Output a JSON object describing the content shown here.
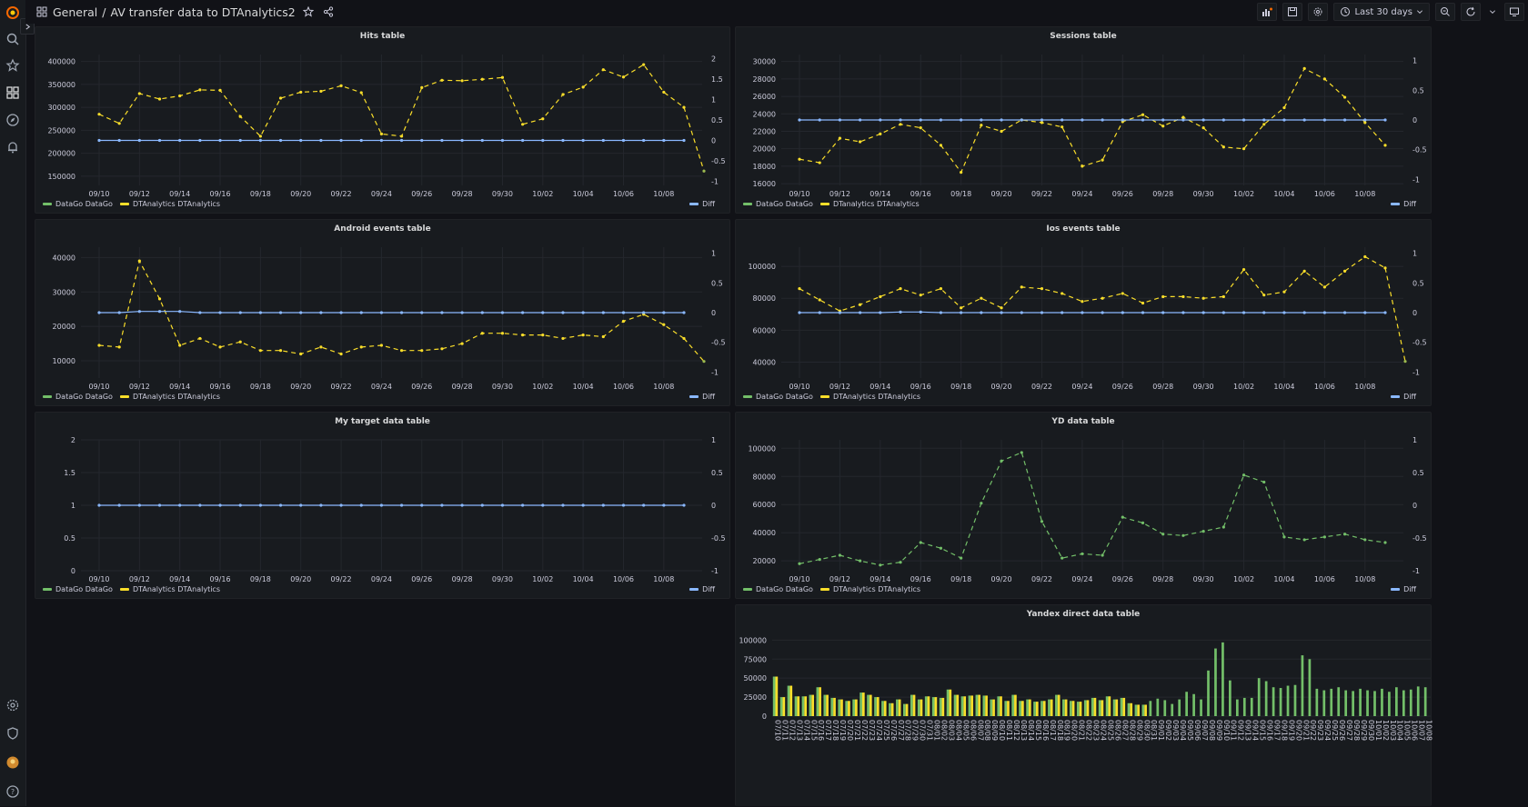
{
  "breadcrumb": {
    "folder": "General",
    "separator": "/",
    "title": "AV transfer data to DTAnalytics2"
  },
  "toolbar": {
    "time_range": "Last 30 days"
  },
  "colors": {
    "series_green": "#73bf69",
    "series_yellow": "#fade2a",
    "series_diff": "#8ab8ff",
    "bar_fill": "#9bb94f"
  },
  "panels": {
    "hits": {
      "title": "Hits table",
      "legend": [
        "DataGo DataGo",
        "DTAnalytics DTAnalytics"
      ],
      "legend_right": "Diff"
    },
    "sessions": {
      "title": "Sessions table",
      "legend": [
        "DataGo DataGo",
        "DTanalytics DTAnalytics"
      ],
      "legend_right": "Diff"
    },
    "android": {
      "title": "Android events table",
      "legend": [
        "DataGo DataGo",
        "DTAnalytics DTAnalytics"
      ],
      "legend_right": "Diff"
    },
    "ios": {
      "title": "Ios events table",
      "legend": [
        "DataGo DataGo",
        "DTAnalytics DTAnalytics"
      ],
      "legend_right": "Diff"
    },
    "target": {
      "title": "My target data table",
      "legend": [
        "DataGo DataGo",
        "DTAnalytics DTAnalytics"
      ],
      "legend_right": "Diff"
    },
    "yd": {
      "title": "YD data table",
      "legend": [
        "DataGo DataGo",
        "DTAnalytics DTAnalytics"
      ],
      "legend_right": "Diff"
    },
    "yandex": {
      "title": "Yandex direct data table"
    }
  },
  "chart_data": [
    {
      "id": "hits",
      "type": "line",
      "x_ticks": [
        "09/10",
        "09/12",
        "09/14",
        "09/16",
        "09/18",
        "09/20",
        "09/22",
        "09/24",
        "09/26",
        "09/28",
        "09/30",
        "10/02",
        "10/04",
        "10/06",
        "10/08"
      ],
      "y_ticks": [
        "400000",
        "350000",
        "300000",
        "250000",
        "200000",
        "150000"
      ],
      "ylim": [
        130000,
        415000
      ],
      "y2_ticks": [
        "2",
        "1.5",
        "1",
        "0.5",
        "0",
        "-0.5",
        "-1"
      ],
      "y2lim": [
        -1.1,
        2.1
      ],
      "series": [
        {
          "name": "DTAnalytics DTAnalytics",
          "axis": "left",
          "color": "#fade2a",
          "dashed": true,
          "values": [
            285000,
            265000,
            330000,
            318000,
            325000,
            338000,
            337000,
            280000,
            237000,
            320000,
            333000,
            335000,
            347000,
            332000,
            242000,
            237000,
            343000,
            359000,
            358000,
            361000,
            365000,
            263000,
            275000,
            328000,
            344000,
            382000,
            366000,
            393000,
            333000,
            300000
          ]
        },
        {
          "name": "Diff",
          "axis": "right",
          "color": "#8ab8ff",
          "values": [
            0,
            0,
            0,
            0,
            0,
            0,
            0,
            0,
            0,
            0,
            0,
            0,
            0,
            0,
            0,
            0,
            0,
            0,
            0,
            0,
            0,
            0,
            0,
            0,
            0,
            0,
            0,
            0,
            0,
            0
          ],
          "end_point": -0.75
        }
      ]
    },
    {
      "id": "sessions",
      "type": "line",
      "x_ticks": [
        "09/10",
        "09/12",
        "09/14",
        "09/16",
        "09/18",
        "09/20",
        "09/22",
        "09/24",
        "09/26",
        "09/28",
        "09/30",
        "10/02",
        "10/04",
        "10/06",
        "10/08"
      ],
      "y_ticks": [
        "30000",
        "28000",
        "26000",
        "24000",
        "22000",
        "20000",
        "18000",
        "16000"
      ],
      "ylim": [
        15800,
        30800
      ],
      "y2_ticks": [
        "1",
        "0.5",
        "0",
        "-0.5",
        "-1"
      ],
      "y2lim": [
        -1.1,
        1.1
      ],
      "series": [
        {
          "name": "DTanalytics DTAnalytics",
          "axis": "left",
          "color": "#fade2a",
          "dashed": true,
          "values": [
            18800,
            18400,
            21200,
            20800,
            21700,
            22800,
            22400,
            20400,
            17300,
            22700,
            22000,
            23300,
            23000,
            22500,
            18000,
            18700,
            23100,
            23900,
            22600,
            23600,
            22400,
            20200,
            20000,
            22800,
            24700,
            29200,
            28000,
            25900,
            23000,
            20400
          ]
        },
        {
          "name": "Diff",
          "axis": "right",
          "color": "#8ab8ff",
          "values": [
            0,
            0,
            0,
            0,
            0,
            0,
            0,
            0,
            0,
            0,
            0,
            0,
            0,
            0,
            0,
            0,
            0,
            0,
            0,
            0,
            0,
            0,
            0,
            0,
            0,
            0,
            0,
            0,
            0,
            0
          ]
        }
      ]
    },
    {
      "id": "android",
      "type": "line",
      "x_ticks": [
        "09/10",
        "09/12",
        "09/14",
        "09/16",
        "09/18",
        "09/20",
        "09/22",
        "09/24",
        "09/26",
        "09/28",
        "09/30",
        "10/02",
        "10/04",
        "10/06",
        "10/08"
      ],
      "y_ticks": [
        "40000",
        "30000",
        "20000",
        "10000"
      ],
      "ylim": [
        5000,
        43000
      ],
      "y2_ticks": [
        "1",
        "0.5",
        "0",
        "-0.5",
        "-1"
      ],
      "y2lim": [
        -1.1,
        1.1
      ],
      "series": [
        {
          "name": "DTAnalytics DTAnalytics",
          "axis": "left",
          "color": "#fade2a",
          "dashed": true,
          "values": [
            14500,
            14000,
            39000,
            28000,
            14500,
            16500,
            14000,
            15500,
            13000,
            13000,
            12000,
            14000,
            12000,
            14000,
            14500,
            13000,
            13000,
            13500,
            15000,
            18000,
            18000,
            17500,
            17500,
            16500,
            17500,
            17000,
            21500,
            23500,
            20500,
            16500
          ]
        },
        {
          "name": "Diff",
          "axis": "right",
          "color": "#8ab8ff",
          "values": [
            0,
            0,
            0.02,
            0.02,
            0.02,
            0,
            0,
            0,
            0,
            0,
            0,
            0,
            0,
            0,
            0,
            0,
            0,
            0,
            0,
            0,
            0,
            0,
            0,
            0,
            0,
            0,
            0,
            0,
            0,
            0
          ],
          "end_point": -0.82
        }
      ]
    },
    {
      "id": "ios",
      "type": "line",
      "x_ticks": [
        "09/10",
        "09/12",
        "09/14",
        "09/16",
        "09/18",
        "09/20",
        "09/22",
        "09/24",
        "09/26",
        "09/28",
        "09/30",
        "10/02",
        "10/04",
        "10/06",
        "10/08"
      ],
      "y_ticks": [
        "100000",
        "80000",
        "60000",
        "40000"
      ],
      "ylim": [
        30000,
        112000
      ],
      "y2_ticks": [
        "1",
        "0.5",
        "0",
        "-0.5",
        "-1"
      ],
      "y2lim": [
        -1.1,
        1.1
      ],
      "series": [
        {
          "name": "DTAnalytics DTAnalytics",
          "axis": "left",
          "color": "#fade2a",
          "dashed": true,
          "values": [
            86000,
            79000,
            72000,
            76000,
            81000,
            86000,
            82000,
            86000,
            74000,
            80000,
            74000,
            87000,
            86000,
            83000,
            78000,
            80000,
            83000,
            77000,
            81000,
            81000,
            80000,
            81000,
            98000,
            82000,
            84000,
            97000,
            87000,
            97000,
            106000,
            99000
          ]
        },
        {
          "name": "Diff",
          "axis": "right",
          "color": "#8ab8ff",
          "values": [
            0,
            0,
            0,
            0,
            0,
            0.01,
            0.01,
            0,
            0,
            0,
            0,
            0,
            0,
            0,
            0,
            0,
            0,
            0,
            0,
            0,
            0,
            0,
            0,
            0,
            0,
            0,
            0,
            0,
            0,
            0
          ],
          "end_point": -0.82
        }
      ]
    },
    {
      "id": "target",
      "type": "line",
      "x_ticks": [
        "09/10",
        "09/12",
        "09/14",
        "09/16",
        "09/18",
        "09/20",
        "09/22",
        "09/24",
        "09/26",
        "09/28",
        "09/30",
        "10/02",
        "10/04",
        "10/06",
        "10/08"
      ],
      "y_ticks": [
        "2",
        "1.5",
        "1",
        "0.5",
        "0"
      ],
      "ylim": [
        0,
        2
      ],
      "y2_ticks": [
        "1",
        "0.5",
        "0",
        "-0.5",
        "-1"
      ],
      "y2lim": [
        -1,
        1
      ],
      "series": [
        {
          "name": "Diff",
          "axis": "right",
          "color": "#8ab8ff",
          "values": [
            0,
            0,
            0,
            0,
            0,
            0,
            0,
            0,
            0,
            0,
            0,
            0,
            0,
            0,
            0,
            0,
            0,
            0,
            0,
            0,
            0,
            0,
            0,
            0,
            0,
            0,
            0,
            0,
            0,
            0
          ]
        }
      ]
    },
    {
      "id": "yd",
      "type": "line",
      "x_ticks": [
        "09/10",
        "09/12",
        "09/14",
        "09/16",
        "09/18",
        "09/20",
        "09/22",
        "09/24",
        "09/26",
        "09/28",
        "09/30",
        "10/02",
        "10/04",
        "10/06",
        "10/08"
      ],
      "y_ticks": [
        "100000",
        "80000",
        "60000",
        "40000",
        "20000"
      ],
      "ylim": [
        13000,
        106000
      ],
      "y2_ticks": [
        "1",
        "0.5",
        "0",
        "-0.5",
        "-1"
      ],
      "y2lim": [
        -1,
        1
      ],
      "series": [
        {
          "name": "DataGo DataGo",
          "axis": "left",
          "color": "#73bf69",
          "dashed": true,
          "values": [
            18000,
            21000,
            24000,
            20000,
            17000,
            19000,
            33000,
            29000,
            22000,
            61000,
            91000,
            97000,
            48000,
            22000,
            25000,
            24000,
            51000,
            47000,
            39000,
            38000,
            41000,
            44000,
            81000,
            76000,
            37000,
            35000,
            37000,
            39000,
            35000,
            33000
          ]
        }
      ]
    },
    {
      "id": "yandex",
      "type": "bar",
      "y_ticks": [
        "100000",
        "75000",
        "50000",
        "25000",
        "0"
      ],
      "ylim": [
        0,
        110000
      ],
      "x_labels": [
        "07/10",
        "07/11",
        "07/12",
        "07/13",
        "07/14",
        "07/15",
        "07/16",
        "07/17",
        "07/18",
        "07/19",
        "07/20",
        "07/21",
        "07/22",
        "07/23",
        "07/24",
        "07/25",
        "07/26",
        "07/27",
        "07/28",
        "07/29",
        "07/30",
        "07/31",
        "08/01",
        "08/02",
        "08/03",
        "08/04",
        "08/05",
        "08/06",
        "08/07",
        "08/08",
        "08/09",
        "08/10",
        "08/11",
        "08/12",
        "08/13",
        "08/14",
        "08/15",
        "08/16",
        "08/17",
        "08/18",
        "08/19",
        "08/20",
        "08/21",
        "08/22",
        "08/23",
        "08/24",
        "08/25",
        "08/26",
        "08/27",
        "08/28",
        "08/29",
        "08/30",
        "08/31",
        "09/01",
        "09/02",
        "09/03",
        "09/04",
        "09/05",
        "09/06",
        "09/07",
        "09/08",
        "09/09",
        "09/10",
        "09/11",
        "09/12",
        "09/13",
        "09/14",
        "09/15",
        "09/16",
        "09/17",
        "09/18",
        "09/19",
        "09/20",
        "09/21",
        "09/22",
        "09/23",
        "09/24",
        "09/25",
        "09/26",
        "09/27",
        "09/28",
        "09/29",
        "09/30",
        "10/01",
        "10/02",
        "10/03",
        "10/04",
        "10/05",
        "10/06",
        "10/07",
        "10/08"
      ],
      "series": [
        {
          "name": "yellow",
          "color": "#fade2a",
          "values": [
            52000,
            25000,
            40000,
            26000,
            26000,
            28000,
            38000,
            28000,
            24000,
            22000,
            20000,
            22000,
            31000,
            28000,
            25000,
            20000,
            17000,
            22000,
            16000,
            28000,
            22000,
            26000,
            25000,
            24000,
            35000,
            28000,
            26000,
            27000,
            28000,
            27000,
            22000,
            26000,
            20000,
            28000,
            20000,
            22000,
            19000,
            20000,
            22000,
            28000,
            22000,
            20000,
            19000,
            21000,
            24000,
            21000,
            26000,
            22000,
            24000,
            17000,
            15000,
            15000,
            null,
            null,
            null,
            null,
            null,
            null,
            null,
            null,
            null,
            null,
            null,
            null,
            null,
            null,
            null,
            null,
            null,
            null,
            null,
            null,
            null,
            null,
            null,
            null,
            null,
            null,
            null,
            null,
            null,
            null,
            null,
            null,
            null,
            null,
            null,
            null,
            null,
            null,
            null
          ]
        },
        {
          "name": "green",
          "color": "#73bf69",
          "values": [
            52000,
            25000,
            40000,
            26000,
            26000,
            28000,
            38000,
            28000,
            24000,
            22000,
            20000,
            22000,
            31000,
            28000,
            25000,
            20000,
            17000,
            22000,
            16000,
            28000,
            22000,
            26000,
            25000,
            24000,
            35000,
            28000,
            26000,
            27000,
            28000,
            27000,
            22000,
            26000,
            20000,
            28000,
            20000,
            22000,
            19000,
            20000,
            22000,
            28000,
            22000,
            20000,
            19000,
            21000,
            24000,
            21000,
            26000,
            22000,
            24000,
            17000,
            15000,
            15000,
            20000,
            23000,
            21000,
            16000,
            22000,
            32000,
            29000,
            22000,
            60000,
            89000,
            97000,
            47000,
            22000,
            24000,
            24000,
            50000,
            46000,
            38000,
            37000,
            40000,
            41000,
            80000,
            75000,
            36000,
            34000,
            36000,
            38000,
            34000,
            33000,
            36000,
            34000,
            33000,
            36000,
            32000,
            38000,
            34000,
            35000,
            39000,
            38000
          ]
        }
      ]
    }
  ]
}
